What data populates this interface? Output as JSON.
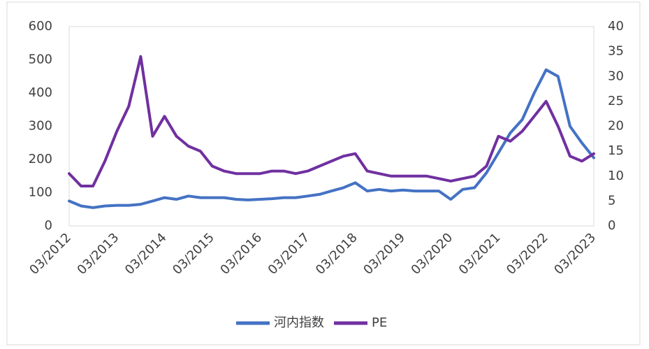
{
  "chart_data": {
    "type": "line",
    "categories": [
      "03/2012",
      null,
      null,
      null,
      "03/2013",
      null,
      null,
      null,
      "03/2014",
      null,
      null,
      null,
      "03/2015",
      null,
      null,
      null,
      "03/2016",
      null,
      null,
      null,
      "03/2017",
      null,
      null,
      null,
      "03/2018",
      null,
      null,
      null,
      "03/2019",
      null,
      null,
      null,
      "03/2020",
      null,
      null,
      null,
      "03/2021",
      null,
      null,
      null,
      "03/2022",
      null,
      null,
      null,
      "03/2023"
    ],
    "series": [
      {
        "name": "河内指数",
        "color": "#4472c4",
        "values": [
          75,
          60,
          55,
          60,
          62,
          62,
          65,
          75,
          85,
          80,
          90,
          85,
          85,
          85,
          80,
          78,
          80,
          82,
          85,
          85,
          90,
          95,
          105,
          115,
          130,
          105,
          110,
          105,
          108,
          105,
          105,
          105,
          80,
          110,
          115,
          160,
          220,
          280,
          320,
          400,
          470,
          450,
          300,
          250,
          205
        ]
      },
      {
        "name": "PE",
        "color": "#7030a0",
        "axis": "y2",
        "values": [
          10.5,
          8,
          8,
          13,
          19,
          24,
          34,
          18,
          22,
          18,
          16,
          15,
          12,
          11,
          10.5,
          10.5,
          10.5,
          11,
          11,
          10.5,
          11,
          12,
          13,
          14,
          14.5,
          11,
          10.5,
          10,
          10,
          10,
          10,
          9.5,
          9,
          9.5,
          10,
          12,
          18,
          17,
          19,
          22,
          25,
          20,
          14,
          13,
          14.5
        ]
      }
    ],
    "ylim": [
      0,
      600
    ],
    "yticks": [
      0,
      100,
      200,
      300,
      400,
      500,
      600
    ],
    "y2lim": [
      0,
      40
    ],
    "y2ticks": [
      0,
      5,
      10,
      15,
      20,
      25,
      30,
      35,
      40
    ],
    "grid": false,
    "legend": "bottom"
  }
}
